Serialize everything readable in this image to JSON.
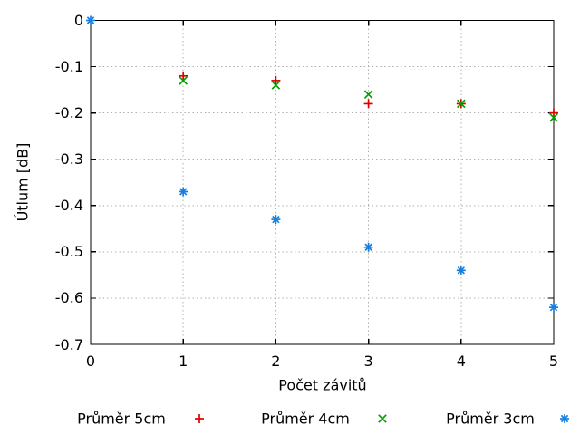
{
  "chart_data": {
    "type": "scatter",
    "title": "",
    "xlabel": "Počet závitů",
    "ylabel": "Útlum [dB]",
    "xlim": [
      0,
      5
    ],
    "ylim": [
      -0.7,
      0
    ],
    "x_ticks": [
      0,
      1,
      2,
      3,
      4,
      5
    ],
    "y_ticks": [
      0,
      -0.1,
      -0.2,
      -0.3,
      -0.4,
      -0.5,
      -0.6,
      -0.7
    ],
    "x_tick_labels": [
      "0",
      "1",
      "2",
      "3",
      "4",
      "5"
    ],
    "y_tick_labels": [
      "0",
      "-0.1",
      "-0.2",
      "-0.3",
      "-0.4",
      "-0.5",
      "-0.6",
      "-0.7"
    ],
    "grid": true,
    "grid_style": "dotted",
    "legend_position": "bottom",
    "background_color": "#ffffff",
    "border_color": "#000000",
    "grid_color": "#b0b0b0",
    "series": [
      {
        "name": "Průměr 5cm",
        "marker": "plus",
        "color": "#e00000",
        "x": [
          1,
          2,
          3,
          4,
          5
        ],
        "y": [
          -0.12,
          -0.13,
          -0.18,
          -0.18,
          -0.2
        ]
      },
      {
        "name": "Průměr 4cm",
        "marker": "cross",
        "color": "#00a000",
        "x": [
          1,
          2,
          3,
          4,
          5
        ],
        "y": [
          -0.13,
          -0.14,
          -0.16,
          -0.18,
          -0.21
        ]
      },
      {
        "name": "Průměr 3cm",
        "marker": "asterisk",
        "color": "#1580e0",
        "x": [
          0,
          1,
          2,
          3,
          4,
          5
        ],
        "y": [
          0,
          -0.37,
          -0.43,
          -0.49,
          -0.54,
          -0.62
        ]
      }
    ]
  }
}
